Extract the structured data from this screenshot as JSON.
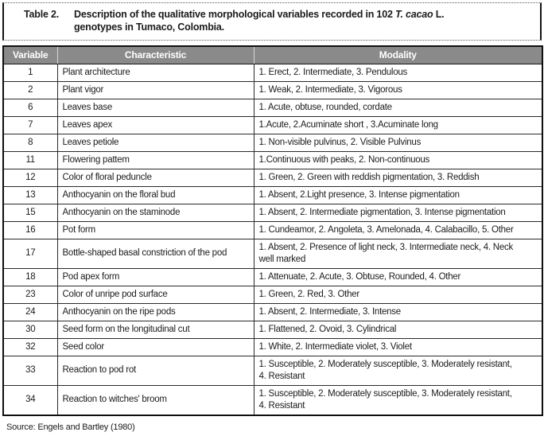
{
  "title_box": {
    "label": "Table 2.",
    "caption_part1": "Description of the qualitative morphological variables recorded in 102 ",
    "caption_italic": "T. cacao",
    "caption_part2": " L.",
    "caption_line2": "genotypes in Tumaco, Colombia."
  },
  "table": {
    "headers": [
      "Variable",
      "Characteristic",
      "Modality"
    ],
    "rows": [
      {
        "variable": "1",
        "characteristic": "Plant architecture",
        "modality": "1. Erect, 2. Intermediate, 3. Pendulous"
      },
      {
        "variable": "2",
        "characteristic": "Plant vigor",
        "modality": "1. Weak, 2. Intermediate, 3. Vigorous"
      },
      {
        "variable": "6",
        "characteristic": "Leaves base",
        "modality": "1. Acute, obtuse, rounded, cordate"
      },
      {
        "variable": "7",
        "characteristic": "Leaves apex",
        "modality": "1.Acute, 2.Acuminate short , 3.Acuminate long"
      },
      {
        "variable": "8",
        "characteristic": "Leaves petiole",
        "modality": "1. Non-visible pulvinus, 2. Visible Pulvinus"
      },
      {
        "variable": "11",
        "characteristic": "Flowering pattem",
        "modality": "1.Continuous with peaks, 2. Non-continuous"
      },
      {
        "variable": "12",
        "characteristic": "Color of floral peduncle",
        "modality": "1. Green, 2. Green with reddish pigmentation, 3. Reddish"
      },
      {
        "variable": "13",
        "characteristic": "Anthocyanin on the floral bud",
        "modality": "1. Absent, 2.Light presence, 3. Intense pigmentation"
      },
      {
        "variable": "15",
        "characteristic": "Anthocyanin on the staminode",
        "modality": "1. Absent, 2. Intermediate pigmentation, 3. Intense pigmentation"
      },
      {
        "variable": "16",
        "characteristic": "Pot form",
        "modality": "1. Cundeamor, 2. Angoleta, 3. Amelonada, 4. Calabacillo, 5. Other"
      },
      {
        "variable": "17",
        "characteristic": "Bottle-shaped basal constriction of the pod",
        "modality": "1. Absent, 2. Presence of light neck, 3. Intermediate neck, 4. Neck\nwell marked"
      },
      {
        "variable": "18",
        "characteristic": "Pod apex form",
        "modality": "1. Attenuate, 2. Acute, 3. Obtuse, Rounded, 4. Other"
      },
      {
        "variable": "23",
        "characteristic": "Color of unripe pod surface",
        "modality": "1. Green, 2. Red, 3. Other"
      },
      {
        "variable": "24",
        "characteristic": "Anthocyanin on the ripe pods",
        "modality": "1. Absent, 2. Intermediate, 3. Intense"
      },
      {
        "variable": "30",
        "characteristic": "Seed form on the longitudinal cut",
        "modality": "1. Flattened, 2. Ovoid, 3. Cylindrical"
      },
      {
        "variable": "32",
        "characteristic": "Seed color",
        "modality": "1. White, 2. Intermediate violet, 3. Violet"
      },
      {
        "variable": "33",
        "characteristic": "Reaction to pod rot",
        "modality": "1. Susceptible, 2. Moderately susceptible, 3. Moderately resistant,\n4. Resistant"
      },
      {
        "variable": "34",
        "characteristic": "Reaction to witches' broom",
        "modality": "1. Susceptible, 2. Moderately susceptible, 3. Moderately resistant,\n4. Resistant"
      }
    ]
  },
  "footer": {
    "source": "Source: Engels and Bartley (1980)"
  },
  "colors": {
    "header_bg": "#8a8a8a",
    "header_text": "#ffffff",
    "border": "#1b1b1b",
    "text": "#1b1b1b",
    "page_bg": "#ffffff"
  }
}
